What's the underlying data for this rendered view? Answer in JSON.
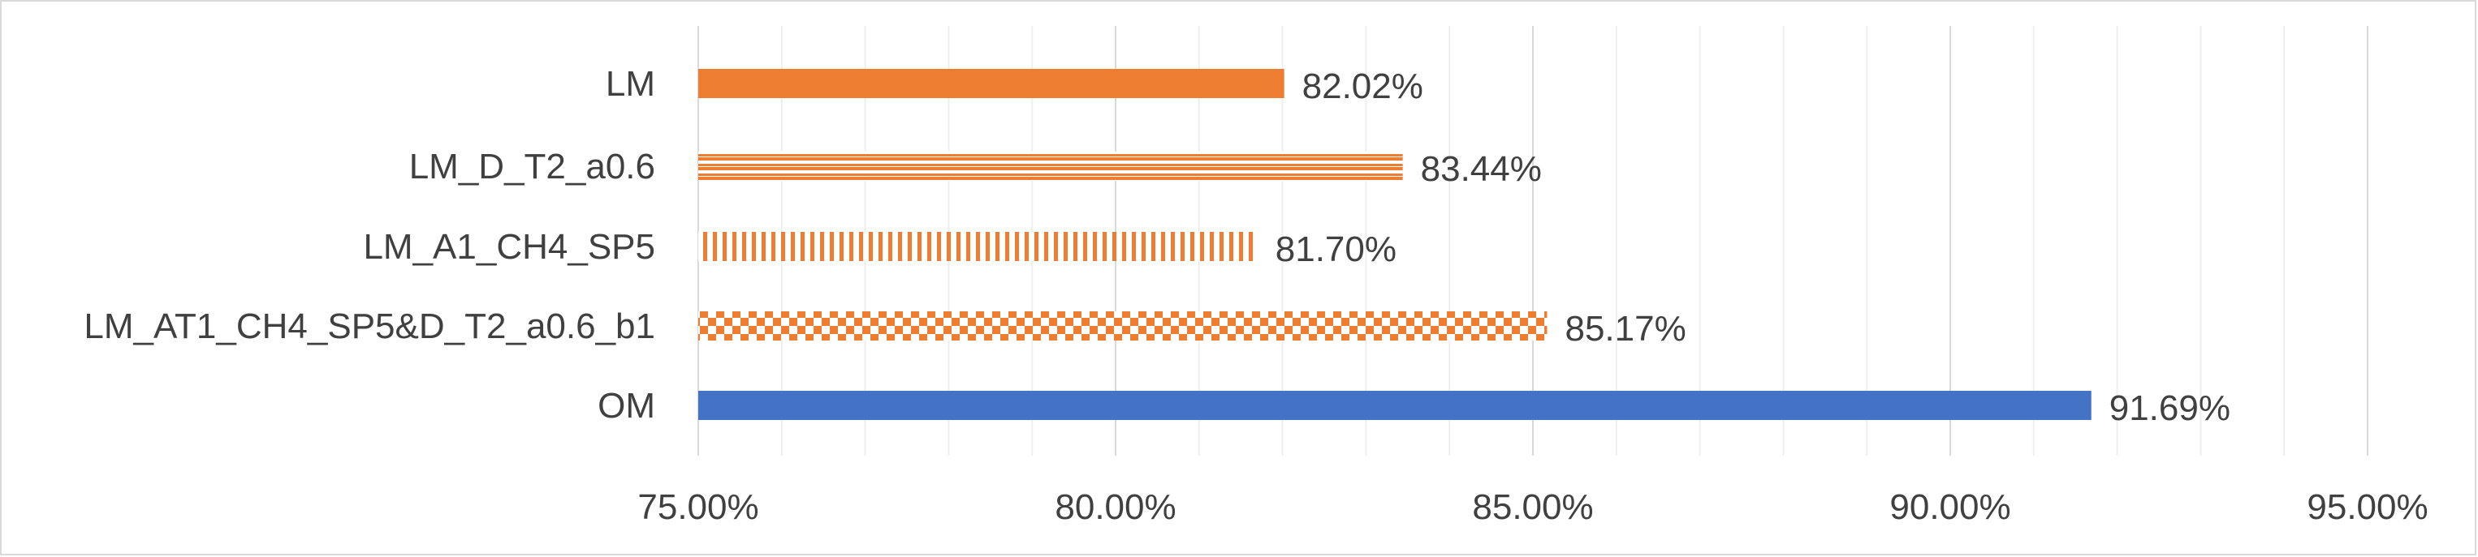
{
  "chart_data": {
    "type": "bar",
    "orientation": "horizontal",
    "categories": [
      "LM",
      "LM_D_T2_a0.6",
      "LM_A1_CH4_SP5",
      "LM_AT1_CH4_SP5&D_T2_a0.6_b1",
      "OM"
    ],
    "values": [
      82.02,
      83.44,
      81.7,
      85.17,
      91.69
    ],
    "data_labels": [
      "82.02%",
      "83.44%",
      "81.70%",
      "85.17%",
      "91.69%"
    ],
    "bar_fills": [
      "solid",
      "horizontal-stripes",
      "vertical-stripes",
      "checker",
      "solid"
    ],
    "bar_colors": [
      "#ED7D31",
      "#ED7D31",
      "#ED7D31",
      "#ED7D31",
      "#4472C4"
    ],
    "xlim": [
      75,
      95
    ],
    "x_ticks": [
      75,
      80,
      85,
      90,
      95
    ],
    "x_tick_labels": [
      "75.00%",
      "80.00%",
      "85.00%",
      "90.00%",
      "95.00%"
    ],
    "grid": true,
    "legend": "none"
  }
}
